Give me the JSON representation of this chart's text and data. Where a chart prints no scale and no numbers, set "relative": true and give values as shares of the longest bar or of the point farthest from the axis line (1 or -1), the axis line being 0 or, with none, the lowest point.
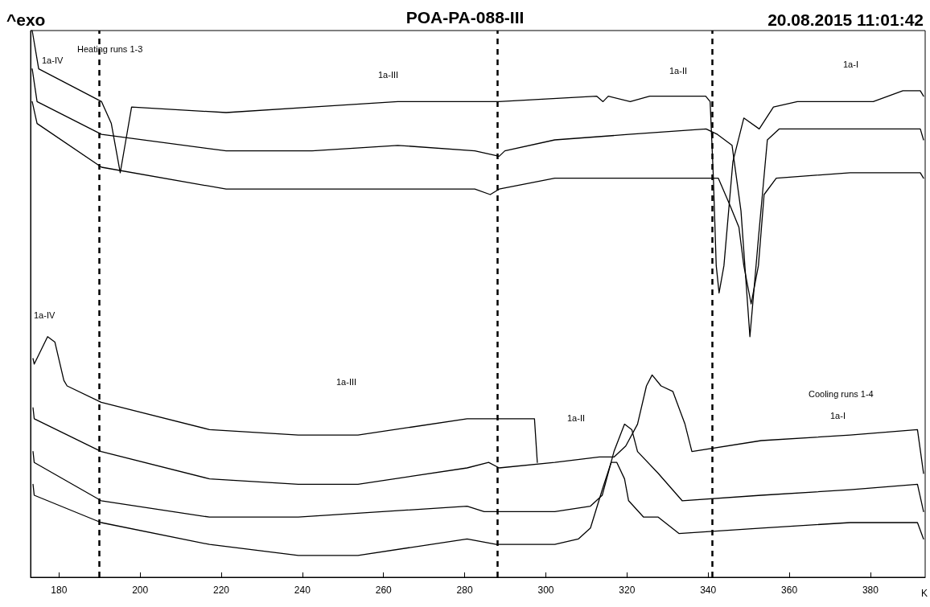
{
  "chart_data": {
    "type": "line",
    "relative": true,
    "title": "POA-PA-088-III",
    "subtitle": "20.08.2015 11:01:42",
    "ylabel": "^exo",
    "xlabel": "K",
    "xlim": [
      173,
      393.5
    ],
    "xticks": [
      180,
      200,
      220,
      240,
      260,
      280,
      300,
      320,
      340,
      360,
      380
    ],
    "grid": false,
    "marker": "none",
    "line_style": "solid",
    "series": [
      {
        "color": "#000000",
        "x": [
          173.4,
          175.0,
          190.5,
          192.9,
          195.1,
          196.5,
          197.9,
          221.2,
          242.4,
          263.5,
          282.5,
          288.4,
          312.5,
          314.1,
          315.4,
          320.8,
          325.6,
          339.4,
          340.5,
          341.3,
          342.0,
          342.7,
          343.9,
          346.1,
          348.8,
          352.6,
          356.1,
          362.0,
          367.7,
          377.8,
          380.7,
          388.0,
          392.3,
          393.1
        ],
        "values": [
          1.0,
          0.93,
          0.87,
          0.83,
          0.74,
          0.8,
          0.86,
          0.85,
          0.86,
          0.87,
          0.87,
          0.87,
          0.88,
          0.87,
          0.88,
          0.87,
          0.88,
          0.88,
          0.87,
          0.73,
          0.57,
          0.52,
          0.57,
          0.76,
          0.84,
          0.82,
          0.86,
          0.87,
          0.87,
          0.87,
          0.87,
          0.89,
          0.89,
          0.88
        ]
      },
      {
        "color": "#000000",
        "x": [
          173.4,
          174.6,
          190.5,
          221.2,
          242.4,
          263.5,
          282.5,
          288.5,
          289.9,
          302.2,
          320.4,
          339.5,
          342.3,
          345.9,
          348.1,
          350.3,
          352.4,
          354.6,
          357.5,
          375.0,
          392.3,
          393.1
        ],
        "values": [
          0.93,
          0.87,
          0.81,
          0.78,
          0.78,
          0.79,
          0.78,
          0.77,
          0.78,
          0.8,
          0.81,
          0.82,
          0.81,
          0.79,
          0.67,
          0.44,
          0.62,
          0.8,
          0.82,
          0.82,
          0.82,
          0.8
        ]
      },
      {
        "color": "#000000",
        "x": [
          173.4,
          174.6,
          190.5,
          221.2,
          242.4,
          263.5,
          282.5,
          286.3,
          288.5,
          302.2,
          331.3,
          339.5,
          342.5,
          345.4,
          347.6,
          348.8,
          350.6,
          352.4,
          353.8,
          356.8,
          375.0,
          392.3,
          393.1
        ],
        "values": [
          0.87,
          0.83,
          0.75,
          0.71,
          0.71,
          0.71,
          0.71,
          0.7,
          0.71,
          0.73,
          0.73,
          0.73,
          0.73,
          0.68,
          0.64,
          0.57,
          0.5,
          0.57,
          0.7,
          0.73,
          0.74,
          0.74,
          0.73
        ]
      },
      {
        "color": "#000000",
        "x": [
          173.6,
          173.9,
          177.2,
          179.0,
          181.2,
          182.0,
          190.4,
          217.1,
          239.0,
          253.7,
          280.6,
          295.7,
          297.2,
          297.9
        ],
        "values": [
          0.4,
          0.39,
          0.44,
          0.43,
          0.36,
          0.35,
          0.32,
          0.27,
          0.26,
          0.26,
          0.29,
          0.29,
          0.29,
          0.21
        ]
      },
      {
        "color": "#000000",
        "x": [
          173.6,
          173.9,
          190.4,
          217.1,
          239.0,
          253.7,
          280.6,
          285.9,
          288.5,
          302.2,
          313.2,
          316.8,
          319.7,
          322.6,
          324.8,
          326.2,
          328.4,
          331.3,
          334.3,
          336.0,
          353.1,
          375.0,
          391.6,
          393.1
        ],
        "values": [
          0.31,
          0.29,
          0.23,
          0.18,
          0.17,
          0.17,
          0.2,
          0.21,
          0.2,
          0.21,
          0.22,
          0.22,
          0.24,
          0.28,
          0.35,
          0.37,
          0.35,
          0.34,
          0.28,
          0.23,
          0.25,
          0.26,
          0.27,
          0.19
        ]
      },
      {
        "color": "#000000",
        "x": [
          173.6,
          173.9,
          190.4,
          217.1,
          239.0,
          280.6,
          284.8,
          288.5,
          302.2,
          311.0,
          313.9,
          316.8,
          319.4,
          321.2,
          322.6,
          327.7,
          333.6,
          353.1,
          375.0,
          391.6,
          393.1
        ],
        "values": [
          0.23,
          0.21,
          0.14,
          0.11,
          0.11,
          0.13,
          0.12,
          0.12,
          0.12,
          0.13,
          0.15,
          0.23,
          0.28,
          0.27,
          0.23,
          0.19,
          0.14,
          0.15,
          0.16,
          0.17,
          0.12
        ]
      },
      {
        "color": "#000000",
        "x": [
          173.6,
          173.9,
          190.4,
          217.1,
          239.0,
          253.7,
          280.6,
          287.8,
          302.2,
          308.0,
          311.0,
          313.9,
          316.1,
          317.5,
          319.4,
          320.4,
          324.1,
          327.7,
          332.8,
          353.1,
          375.0,
          391.6,
          393.1
        ],
        "values": [
          0.17,
          0.15,
          0.1,
          0.06,
          0.04,
          0.04,
          0.07,
          0.06,
          0.06,
          0.07,
          0.09,
          0.16,
          0.21,
          0.21,
          0.18,
          0.14,
          0.11,
          0.11,
          0.08,
          0.09,
          0.1,
          0.1,
          0.07
        ]
      }
    ],
    "ref_lines": [
      {
        "axis": "x",
        "value": 190,
        "color": "#000000",
        "line_style": "dashed"
      },
      {
        "axis": "x",
        "value": 288,
        "color": "#000000",
        "line_style": "dashed"
      },
      {
        "axis": "x",
        "value": 341,
        "color": "#000000",
        "line_style": "dashed"
      }
    ],
    "annotations": [
      "Heating runs 1-3",
      "1a-IV",
      "1a-III",
      "1a-II",
      "1a-I",
      "1a-IV",
      "1a-III",
      "1a-II",
      "Cooling runs 1-4",
      "1a-I"
    ]
  }
}
